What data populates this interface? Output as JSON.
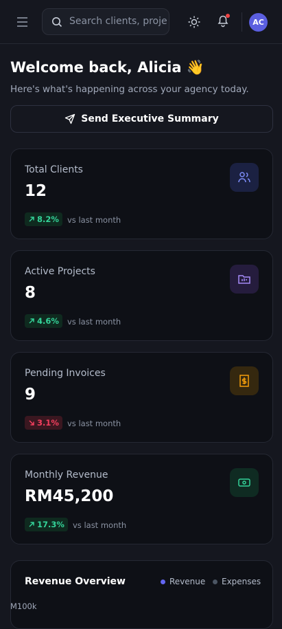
{
  "header": {
    "search_placeholder": "Search clients, proje",
    "avatar": "AC"
  },
  "welcome": {
    "title": "Welcome back, Alicia 👋",
    "subtitle": "Here's what's happening across your agency today."
  },
  "action": "Send Executive Summary",
  "stats": [
    {
      "label": "Total Clients",
      "value": 12,
      "change": "8.2%",
      "trend": "up",
      "note": "vs last month"
    },
    {
      "label": "Active Projects",
      "value": 8,
      "change": "4.6%",
      "trend": "up",
      "note": "vs last month"
    },
    {
      "label": "Pending Invoices",
      "value": 9,
      "change": "3.1%",
      "trend": "down",
      "note": "vs last month"
    },
    {
      "label": "Monthly Revenue",
      "value": "RM45,200",
      "change": "17.3%",
      "trend": "up",
      "note": "vs last month"
    }
  ],
  "revenue_overview": {
    "title": "Revenue Overview",
    "legend": [
      {
        "name": "Revenue",
        "color": "#6366f1"
      },
      {
        "name": "Expenses",
        "color": "#4b5563"
      }
    ],
    "axis_label": "M100k"
  }
}
